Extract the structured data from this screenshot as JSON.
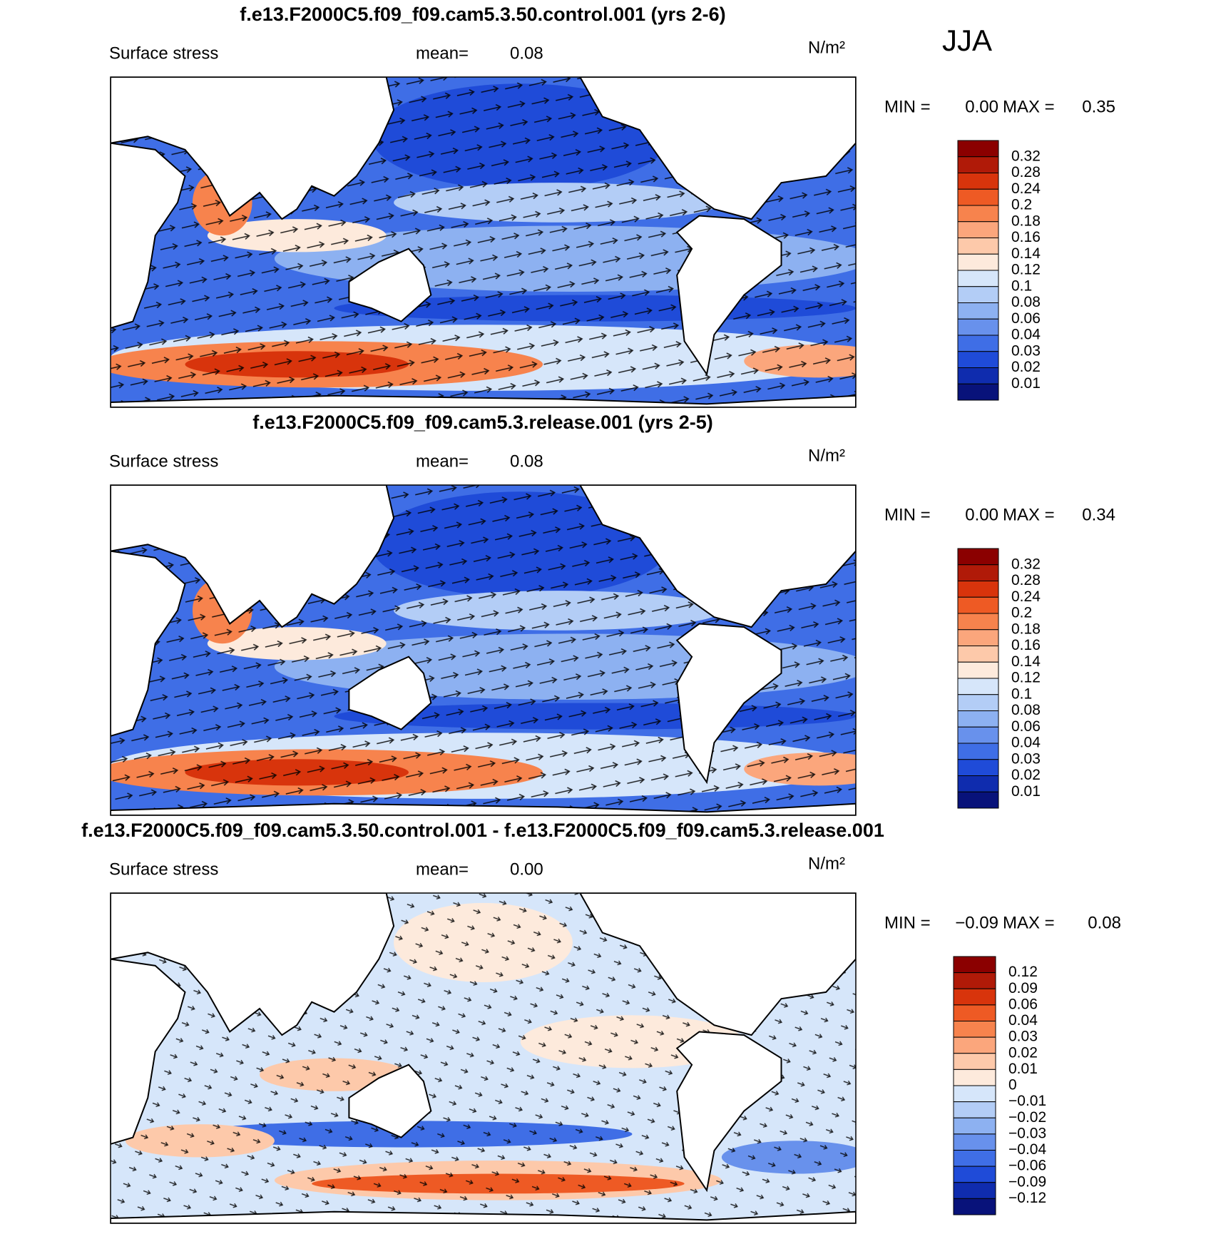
{
  "season": "JJA",
  "colorbar_colors": [
    "#8b0000",
    "#b01a08",
    "#d8340c",
    "#ee5a24",
    "#f7834d",
    "#fba67c",
    "#fdc9aa",
    "#fdeadc",
    "#d6e6fa",
    "#b3cdf6",
    "#8db1f1",
    "#6891ec",
    "#3f6ee6",
    "#1f4bd8",
    "#0f2cae",
    "#08127a"
  ],
  "panels": [
    {
      "title": "f.e13.F2000C5.f09_f09.cam5.3.50.control.001 (yrs 2-6)",
      "field": "Surface stress",
      "mean_label": "mean=",
      "mean": "0.08",
      "units": "N/m²",
      "min_label": "MIN =",
      "min": "0.00",
      "max_label": "MAX =",
      "max": "0.35",
      "colorbar_labels": [
        "0.32",
        "0.28",
        "0.24",
        "0.2",
        "0.18",
        "0.16",
        "0.14",
        "0.12",
        "0.1",
        "0.08",
        "0.06",
        "0.04",
        "0.03",
        "0.02",
        "0.01"
      ]
    },
    {
      "title": "f.e13.F2000C5.f09_f09.cam5.3.release.001 (yrs 2-5)",
      "field": "Surface stress",
      "mean_label": "mean=",
      "mean": "0.08",
      "units": "N/m²",
      "min_label": "MIN =",
      "min": "0.00",
      "max_label": "MAX =",
      "max": "0.34",
      "colorbar_labels": [
        "0.32",
        "0.28",
        "0.24",
        "0.2",
        "0.18",
        "0.16",
        "0.14",
        "0.12",
        "0.1",
        "0.08",
        "0.06",
        "0.04",
        "0.03",
        "0.02",
        "0.01"
      ]
    },
    {
      "title": "f.e13.F2000C5.f09_f09.cam5.3.50.control.001 - f.e13.F2000C5.f09_f09.cam5.3.release.001",
      "field": "Surface stress",
      "mean_label": "mean=",
      "mean": "0.00",
      "units": "N/m²",
      "min_label": "MIN =",
      "min": "−0.09",
      "max_label": "MAX =",
      "max": "0.08",
      "colorbar_labels": [
        "0.12",
        "0.09",
        "0.06",
        "0.04",
        "0.03",
        "0.02",
        "0.01",
        "0",
        "−0.01",
        "−0.02",
        "−0.03",
        "−0.04",
        "−0.06",
        "−0.09",
        "−0.12"
      ]
    }
  ]
}
